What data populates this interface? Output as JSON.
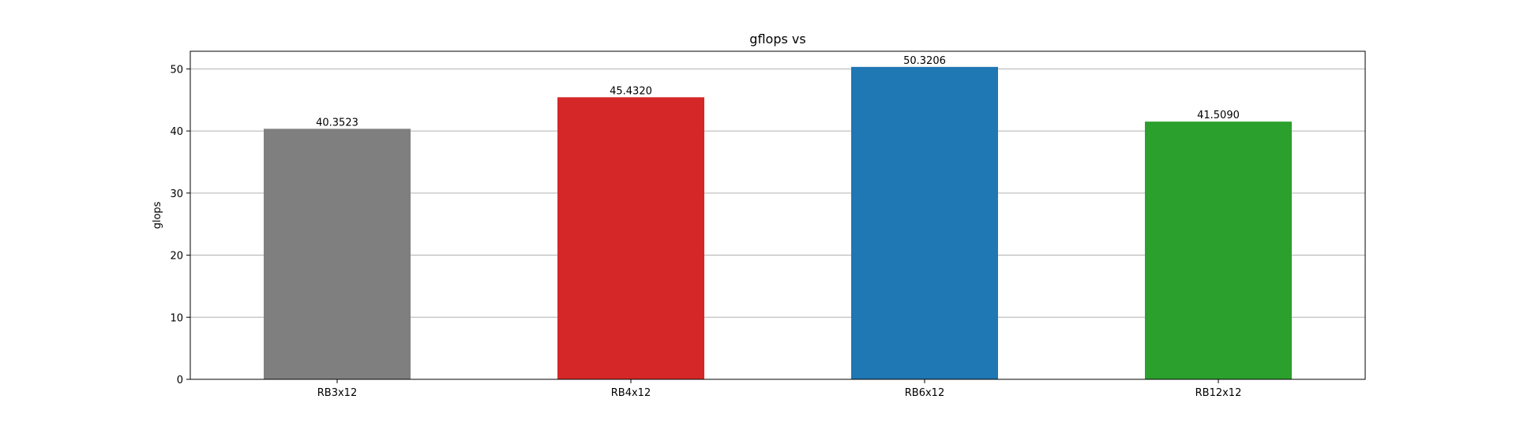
{
  "chart_data": {
    "type": "bar",
    "title": "gflops vs",
    "xlabel": "",
    "ylabel": "glops",
    "categories": [
      "RB3x12",
      "RB4x12",
      "RB6x12",
      "RB12x12"
    ],
    "values": [
      40.3523,
      45.432,
      50.3206,
      41.509
    ],
    "value_labels": [
      "40.3523",
      "45.4320",
      "50.3206",
      "41.5090"
    ],
    "bar_colors": [
      "#7f7f7f",
      "#d62728",
      "#1f77b4",
      "#2ca02c"
    ],
    "ylim": [
      0,
      52.84
    ],
    "yticks": [
      0,
      10,
      20,
      30,
      40,
      50
    ],
    "ytick_labels": [
      "0",
      "10",
      "20",
      "30",
      "40",
      "50"
    ],
    "grid": "y",
    "legend": "none"
  }
}
